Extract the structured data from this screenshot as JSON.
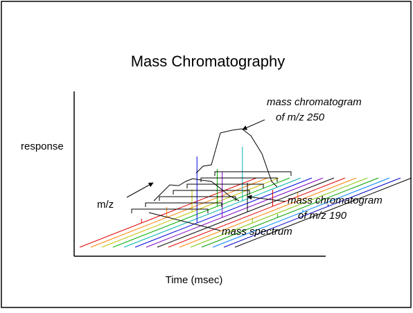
{
  "title": "Mass Chromatography",
  "axes": {
    "y_label": "response",
    "x_label": "Time (msec)",
    "depth_label": "m/z"
  },
  "annotations": [
    {
      "lines": [
        "mass chromatogram",
        "of  m/z 250"
      ]
    },
    {
      "lines": [
        "mass chromatogram",
        "of  m/z 190"
      ]
    },
    {
      "lines": [
        "mass spectrum"
      ]
    }
  ]
}
